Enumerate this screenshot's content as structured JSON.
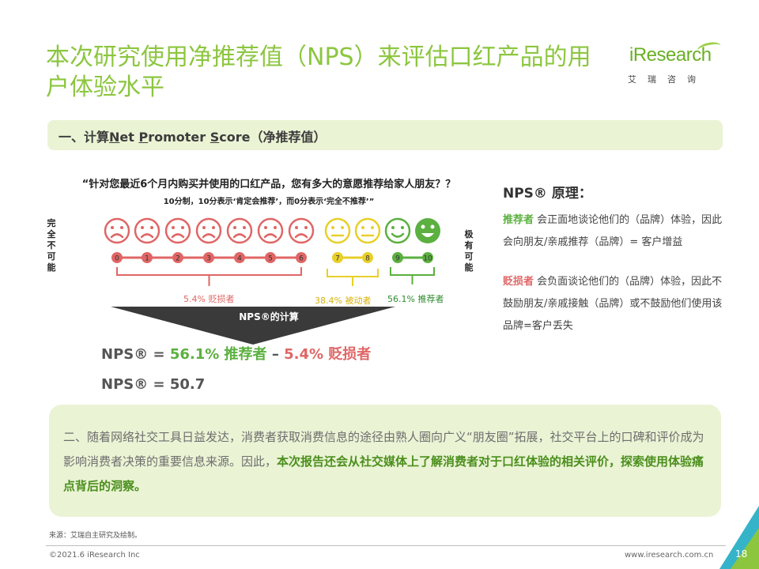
{
  "title": "本次研究使用净推荐值（NPS）来评估口红产品的用户体验水平",
  "logo": {
    "wordmark": "iResearch",
    "chinese": "艾瑞咨询"
  },
  "section1": {
    "prefix": "一、计算",
    "net": "N",
    "et": "et ",
    "p": "P",
    "romoter": "romoter ",
    "s": "S",
    "core": "core",
    "suffix": "（净推荐值）"
  },
  "question": "“针对您最近6个月内购买并使用的口红产品，您有多大的意愿推荐给家人朋友？？",
  "scale_note": "10分制，10分表示‘肯定会推荐’，而0分表示‘完全不推荐’”",
  "left_vertical": "完全不可能",
  "right_vertical": "极有可能",
  "scale": [
    {
      "score": "0",
      "face": "sad"
    },
    {
      "score": "1",
      "face": "sad"
    },
    {
      "score": "2",
      "face": "sad"
    },
    {
      "score": "3",
      "face": "sad"
    },
    {
      "score": "4",
      "face": "sad"
    },
    {
      "score": "5",
      "face": "sad"
    },
    {
      "score": "6",
      "face": "sad"
    },
    {
      "score": "7",
      "face": "neutral"
    },
    {
      "score": "8",
      "face": "neutral"
    },
    {
      "score": "9",
      "face": "smile"
    },
    {
      "score": "10",
      "face": "grin"
    }
  ],
  "groups": {
    "detractors": "5.4% 贬损者",
    "passives": "38.4% 被动者",
    "promoters": "56.1% 推荐者"
  },
  "calc_label": "NPS®的计算",
  "formula": {
    "prefix": "NPS® = ",
    "promoters": "56.1% 推荐者",
    "minus": " – ",
    "detractors": "5.4% 贬损者",
    "result": "NPS® = 50.7"
  },
  "principle": {
    "heading": "NPS® 原理：",
    "promoter_term": "推荐者",
    "promoter_text": " 会正面地谈论他们的（品牌）体验，因此会向朋友/亲戚推荐（品牌）= 客户增益",
    "detractor_term": "贬损者",
    "detractor_text": " 会负面谈论他们的（品牌）体验，因此不鼓励朋友/亲戚接触（品牌）或不鼓励他们使用该品牌=客户丢失"
  },
  "section2": {
    "text": "二、随着网络社交工具日益发达，消费者获取消费信息的途径由熟人圈向广义“朋友圈”拓展，社交平台上的口碑和评价成为影响消费者决策的重要信息来源。因此，",
    "bold": "本次报告还会从社交媒体上了解消费者对于口红体验的相关评价，探索使用体验痛点背后的洞察。"
  },
  "source": "来源：艾瑞自主研究及绘制。",
  "copyright": "©2021.6 iResearch Inc",
  "website": "www.iresearch.com.cn",
  "page_number": "18",
  "colors": {
    "accent": "#8cc63f",
    "detractor": "#e06666",
    "passive": "#e8cf2a",
    "promoter": "#5bb040",
    "panel": "#eaf3d4"
  }
}
